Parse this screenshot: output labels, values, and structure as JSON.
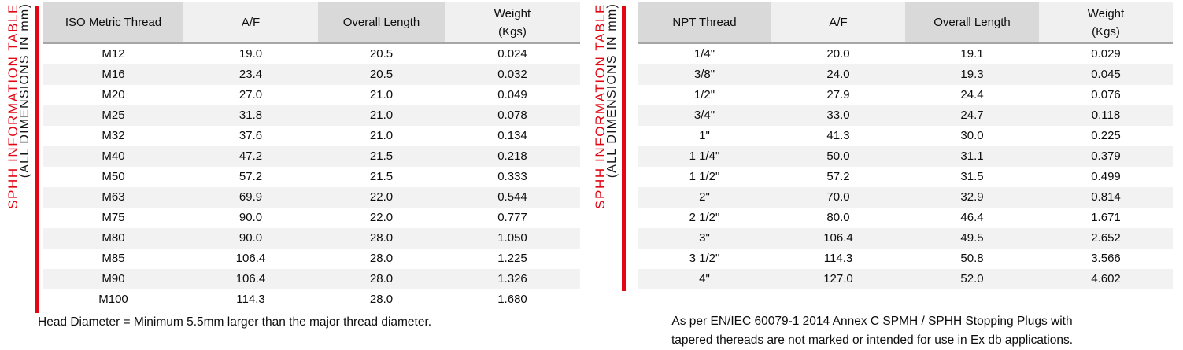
{
  "colors": {
    "accent_red": "#e30613",
    "header_dark": "#d9d9d9",
    "header_light": "#f0f0f0",
    "zebra_stripe": "#f2f2f2"
  },
  "side_label": {
    "title": "SPHH INFORMATION TABLE",
    "subtitle": "(ALL DIMENSIONS IN mm)"
  },
  "iso_table": {
    "columns": [
      [
        "ISO Metric Thread"
      ],
      [
        "A/F"
      ],
      [
        "Overall Length"
      ],
      [
        "Weight",
        "(Kgs)"
      ]
    ],
    "rows": [
      [
        "M12",
        "19.0",
        "20.5",
        "0.024"
      ],
      [
        "M16",
        "23.4",
        "20.5",
        "0.032"
      ],
      [
        "M20",
        "27.0",
        "21.0",
        "0.049"
      ],
      [
        "M25",
        "31.8",
        "21.0",
        "0.078"
      ],
      [
        "M32",
        "37.6",
        "21.0",
        "0.134"
      ],
      [
        "M40",
        "47.2",
        "21.5",
        "0.218"
      ],
      [
        "M50",
        "57.2",
        "21.5",
        "0.333"
      ],
      [
        "M63",
        "69.9",
        "22.0",
        "0.544"
      ],
      [
        "M75",
        "90.0",
        "22.0",
        "0.777"
      ],
      [
        "M80",
        "90.0",
        "28.0",
        "1.050"
      ],
      [
        "M85",
        "106.4",
        "28.0",
        "1.225"
      ],
      [
        "M90",
        "106.4",
        "28.0",
        "1.326"
      ],
      [
        "M100",
        "114.3",
        "28.0",
        "1.680"
      ]
    ],
    "footnote": "Head Diameter = Minimum 5.5mm larger than the major thread diameter."
  },
  "npt_table": {
    "columns": [
      [
        "NPT Thread"
      ],
      [
        "A/F"
      ],
      [
        "Overall Length"
      ],
      [
        "Weight",
        "(Kgs)"
      ]
    ],
    "rows": [
      [
        "1/4\"",
        "20.0",
        "19.1",
        "0.029"
      ],
      [
        "3/8\"",
        "24.0",
        "19.3",
        "0.045"
      ],
      [
        "1/2\"",
        "27.9",
        "24.4",
        "0.076"
      ],
      [
        "3/4\"",
        "33.0",
        "24.7",
        "0.118"
      ],
      [
        "1\"",
        "41.3",
        "30.0",
        "0.225"
      ],
      [
        "1 1/4\"",
        "50.0",
        "31.1",
        "0.379"
      ],
      [
        "1 1/2\"",
        "57.2",
        "31.5",
        "0.499"
      ],
      [
        "2\"",
        "70.0",
        "32.9",
        "0.814"
      ],
      [
        "2 1/2\"",
        "80.0",
        "46.4",
        "1.671"
      ],
      [
        "3\"",
        "106.4",
        "49.5",
        "2.652"
      ],
      [
        "3 1/2\"",
        "114.3",
        "50.8",
        "3.566"
      ],
      [
        "4\"",
        "127.0",
        "52.0",
        "4.602"
      ]
    ],
    "footnote_line1": "As per EN/IEC 60079-1 2014 Annex C SPMH / SPHH Stopping Plugs with",
    "footnote_line2": "tapered thereads are not marked or intended for use in Ex db applications."
  }
}
